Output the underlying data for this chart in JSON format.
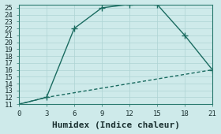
{
  "xlabel": "Humidex (Indice chaleur)",
  "background_color": "#ceeaea",
  "line_color": "#1a6b60",
  "xlim": [
    0,
    21
  ],
  "ylim": [
    11,
    25.5
  ],
  "xticks": [
    0,
    3,
    6,
    9,
    12,
    15,
    18,
    21
  ],
  "yticks": [
    11,
    12,
    13,
    14,
    15,
    16,
    17,
    18,
    19,
    20,
    21,
    22,
    23,
    24,
    25
  ],
  "series1_x": [
    0,
    3,
    21
  ],
  "series1_y": [
    11,
    12,
    16
  ],
  "series2_x": [
    0,
    3,
    6,
    9,
    12,
    15,
    18,
    21
  ],
  "series2_y": [
    11,
    12,
    22,
    25,
    25.5,
    25.5,
    21,
    16
  ],
  "series2_marker_x": [
    3,
    6,
    9,
    12,
    15,
    18,
    21
  ],
  "series2_marker_y": [
    12,
    22,
    25,
    25.5,
    25.5,
    21,
    16
  ],
  "markersize": 3,
  "linewidth": 1.0,
  "font_family": "monospace",
  "xlabel_fontsize": 8,
  "tick_fontsize": 6.5,
  "grid_color": "#aed4d4",
  "spine_color": "#2a7a6e"
}
